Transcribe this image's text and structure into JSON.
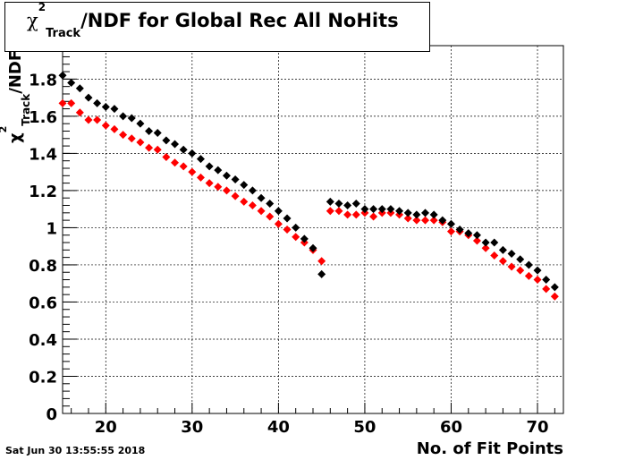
{
  "chart_data": {
    "type": "scatter",
    "title_parts": {
      "chi": "χ",
      "sup": "2",
      "sub": "Track",
      "rest": "/NDF for Global Rec All NoHits"
    },
    "ylabel_parts": {
      "chi": "χ",
      "sup": "2",
      "sub": "Track",
      "rest": "/NDF"
    },
    "xlabel": "No. of Fit Points",
    "xlim": [
      15,
      73
    ],
    "ylim": [
      0,
      1.98
    ],
    "xticks": [
      20,
      30,
      40,
      50,
      60,
      70
    ],
    "yticks": [
      0,
      0.2,
      0.4,
      0.6,
      0.8,
      1,
      1.2,
      1.4,
      1.6,
      1.8
    ],
    "ytick_labels": [
      "0",
      "0.2",
      "0.4",
      "0.6",
      "0.8",
      "1",
      "1.2",
      "1.4",
      "1.6",
      "1.8"
    ],
    "grid": true,
    "series": [
      {
        "color": "#000000",
        "x": [
          15,
          16,
          17,
          18,
          19,
          20,
          21,
          22,
          23,
          24,
          25,
          26,
          27,
          28,
          29,
          30,
          31,
          32,
          33,
          34,
          35,
          36,
          37,
          38,
          39,
          40,
          41,
          42,
          43,
          44,
          45,
          46,
          47,
          48,
          49,
          50,
          51,
          52,
          53,
          54,
          55,
          56,
          57,
          58,
          59,
          60,
          61,
          62,
          63,
          64,
          65,
          66,
          67,
          68,
          69,
          70,
          71,
          72
        ],
        "y": [
          1.82,
          1.78,
          1.75,
          1.7,
          1.67,
          1.65,
          1.64,
          1.6,
          1.59,
          1.56,
          1.52,
          1.51,
          1.47,
          1.45,
          1.42,
          1.4,
          1.37,
          1.33,
          1.31,
          1.28,
          1.26,
          1.23,
          1.2,
          1.16,
          1.13,
          1.09,
          1.05,
          1.0,
          0.94,
          0.89,
          0.75,
          1.14,
          1.13,
          1.12,
          1.13,
          1.1,
          1.1,
          1.1,
          1.1,
          1.09,
          1.08,
          1.07,
          1.08,
          1.07,
          1.04,
          1.02,
          0.99,
          0.97,
          0.96,
          0.92,
          0.92,
          0.88,
          0.86,
          0.83,
          0.8,
          0.77,
          0.72,
          0.68
        ]
      },
      {
        "color": "#ff0000",
        "x": [
          15,
          16,
          17,
          18,
          19,
          20,
          21,
          22,
          23,
          24,
          25,
          26,
          27,
          28,
          29,
          30,
          31,
          32,
          33,
          34,
          35,
          36,
          37,
          38,
          39,
          40,
          41,
          42,
          43,
          44,
          45,
          46,
          47,
          48,
          49,
          50,
          51,
          52,
          53,
          54,
          55,
          56,
          57,
          58,
          59,
          60,
          61,
          62,
          63,
          64,
          65,
          66,
          67,
          68,
          69,
          70,
          71,
          72
        ],
        "y": [
          1.67,
          1.67,
          1.62,
          1.58,
          1.58,
          1.55,
          1.53,
          1.5,
          1.48,
          1.46,
          1.43,
          1.42,
          1.38,
          1.35,
          1.33,
          1.3,
          1.27,
          1.24,
          1.22,
          1.2,
          1.17,
          1.14,
          1.12,
          1.09,
          1.06,
          1.02,
          0.99,
          0.95,
          0.92,
          0.88,
          0.82,
          1.09,
          1.09,
          1.07,
          1.07,
          1.08,
          1.06,
          1.08,
          1.08,
          1.07,
          1.05,
          1.04,
          1.04,
          1.04,
          1.03,
          0.98,
          0.98,
          0.96,
          0.93,
          0.89,
          0.85,
          0.82,
          0.79,
          0.77,
          0.74,
          0.72,
          0.67,
          0.63
        ]
      }
    ]
  },
  "footer": {
    "date": "Sat Jun 30 13:55:55 2018"
  }
}
